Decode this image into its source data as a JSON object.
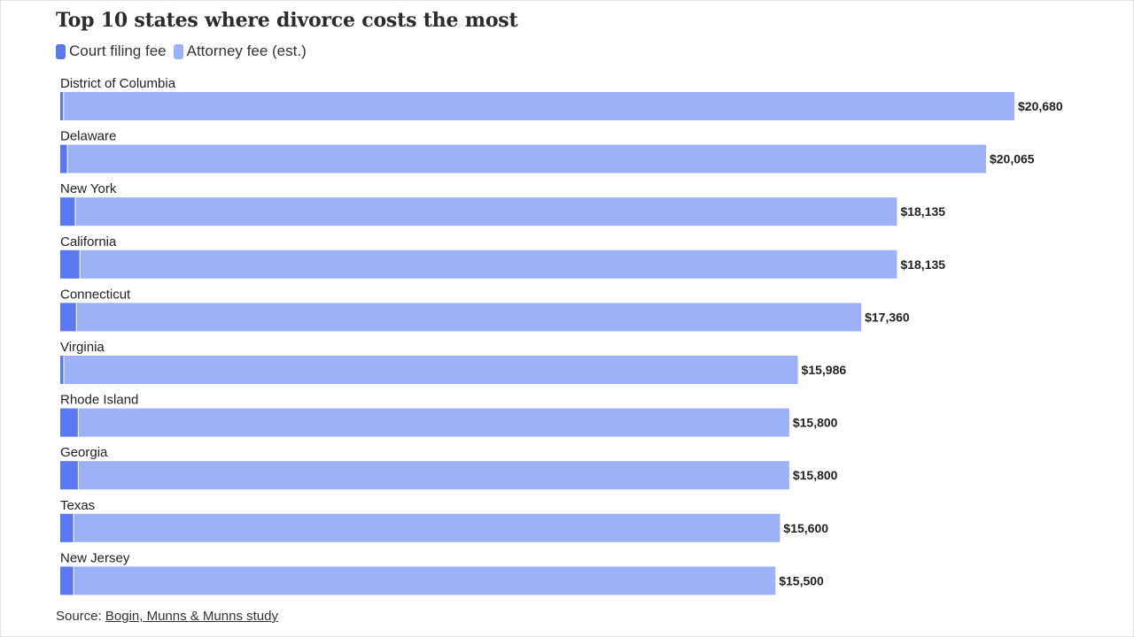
{
  "colors": {
    "court_filing_fee": "#5b78f0",
    "attorney_fee": "#9db1f7",
    "separator": "#ffffff"
  },
  "chart_data": {
    "type": "bar",
    "orientation": "horizontal",
    "stacked": true,
    "title": "Top 10 states where divorce costs the most",
    "legend_position": "top-left",
    "grid": false,
    "categories": [
      "District of Columbia",
      "Delaware",
      "New York",
      "California",
      "Connecticut",
      "Virginia",
      "Rhode Island",
      "Georgia",
      "Texas",
      "New Jersey"
    ],
    "series": [
      {
        "name": "Court filing fee",
        "values": [
          80,
          165,
          335,
          435,
          360,
          86,
          400,
          400,
          300,
          300
        ]
      },
      {
        "name": "Attorney fee (est.)",
        "values": [
          20600,
          19900,
          17800,
          17700,
          17000,
          15900,
          15400,
          15400,
          15300,
          15200
        ]
      }
    ],
    "totals": [
      20680,
      20065,
      18135,
      18135,
      17360,
      15986,
      15800,
      15800,
      15600,
      15500
    ],
    "total_labels": [
      "$20,680",
      "$20,065",
      "$18,135",
      "$18,135",
      "$17,360",
      "$15,986",
      "$15,800",
      "$15,800",
      "$15,600",
      "$15,500"
    ],
    "xlim": [
      0,
      20680
    ]
  },
  "source": {
    "prefix": "Source: ",
    "link_text": "Bogin, Munns & Munns study"
  }
}
